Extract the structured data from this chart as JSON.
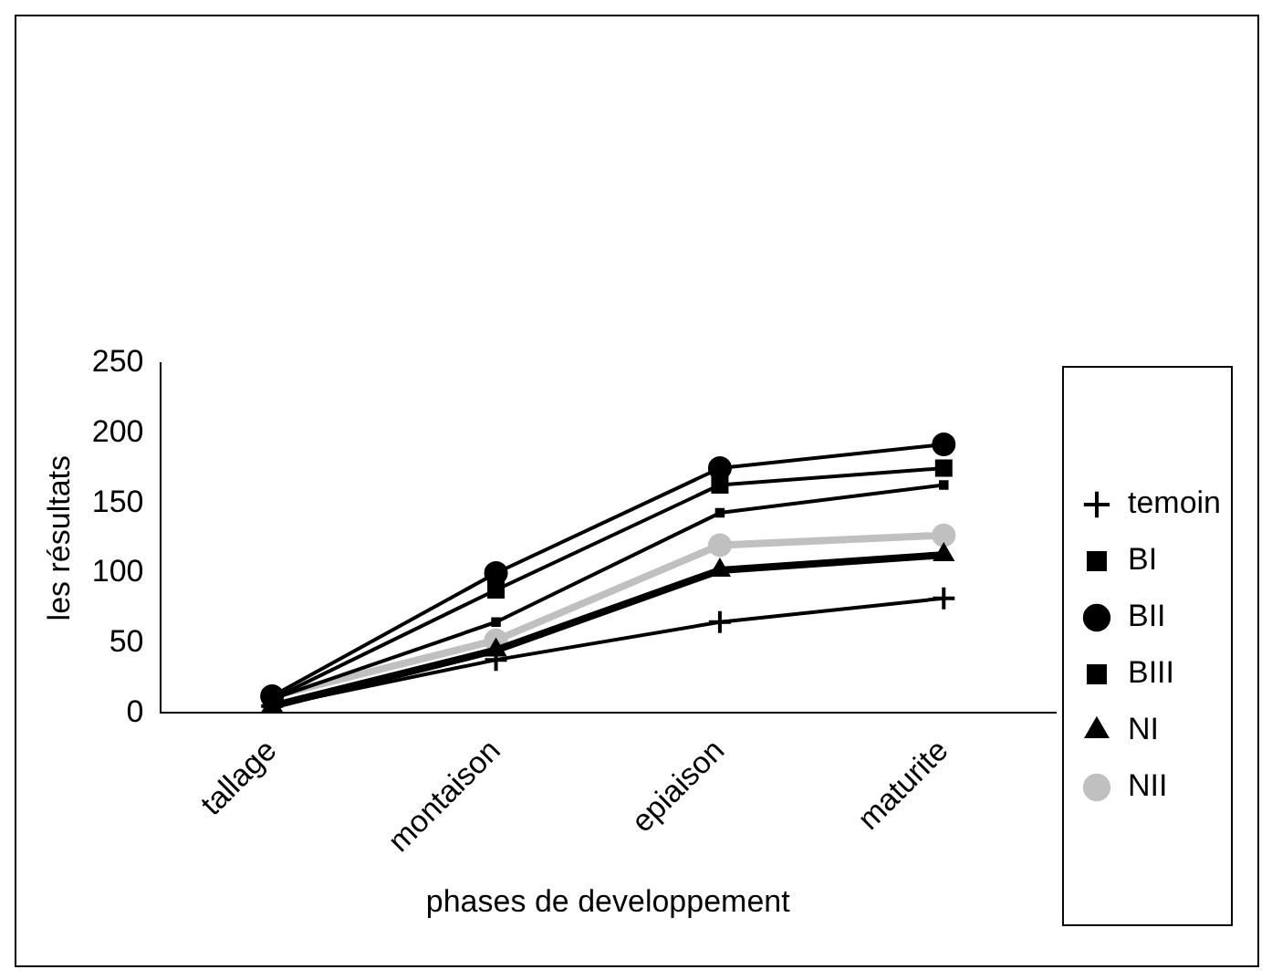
{
  "chart_data": {
    "type": "line",
    "xlabel": "phases de developpement",
    "ylabel": "les résultats",
    "categories": [
      "tallage",
      "montaison",
      "epiaison",
      "maturite"
    ],
    "series": [
      {
        "name": "temoin",
        "color": "#000000",
        "marker": "cross",
        "values": [
          5,
          38,
          65,
          82
        ]
      },
      {
        "name": "BI",
        "color": "#000000",
        "marker": "square",
        "values": [
          10,
          65,
          143,
          163
        ]
      },
      {
        "name": "BII",
        "color": "#000000",
        "marker": "circle",
        "values": [
          12,
          100,
          175,
          192
        ]
      },
      {
        "name": "BIII",
        "color": "#000000",
        "marker": "square",
        "values": [
          10,
          88,
          163,
          175
        ]
      },
      {
        "name": "NI",
        "color": "#000000",
        "marker": "triangle",
        "values": [
          5,
          45,
          102,
          113
        ]
      },
      {
        "name": "NII",
        "color": "#c0c0c0",
        "marker": "circle",
        "values": [
          12,
          52,
          120,
          127
        ]
      }
    ],
    "ylim": [
      0,
      250
    ],
    "yticks": [
      0,
      50,
      100,
      150,
      200,
      250
    ],
    "grid": false,
    "legend": "right",
    "line_style": "solid"
  }
}
